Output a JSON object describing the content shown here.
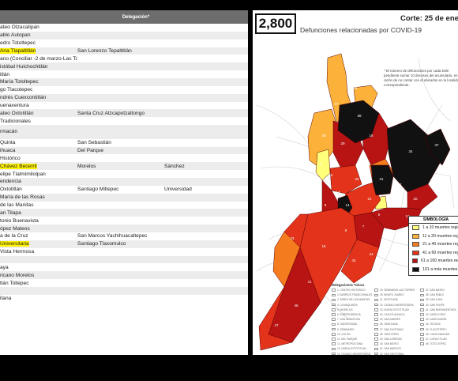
{
  "table": {
    "header": "Delegación*",
    "rows": [
      {
        "c1": "ateo Otzacatipan",
        "c2": "",
        "c3": ""
      },
      {
        "c1": "ablo Autopan",
        "c2": "",
        "c3": ""
      },
      {
        "c1": "edro Totoltepec",
        "c2": "",
        "c3": ""
      },
      {
        "c1": "Ana Tlapaltitlán",
        "c2": "San Lorenzo Tepaltitlán",
        "c3": "",
        "hl": true
      },
      {
        "c1": "ano (Conciliar -2 de marzo-Las Torres)",
        "c2": "",
        "c3": ""
      },
      {
        "c1": "istóbal Huichochitlán",
        "c2": "",
        "c3": ""
      },
      {
        "c1": "itlán",
        "c2": "",
        "c3": ""
      },
      {
        "c1": "María Totoltepec",
        "c2": "",
        "c3": ""
      },
      {
        "c1": "go Tlacotepec",
        "c2": "",
        "c3": ""
      },
      {
        "c1": "ndrés Cuexcontitlán",
        "c2": "",
        "c3": ""
      },
      {
        "c1": "uenaventura",
        "c2": "",
        "c3": ""
      },
      {
        "c1": "ateo Oxtotitlán",
        "c2": "Santa Cruz Atzcapotzaltongo",
        "c3": ""
      },
      {
        "c1": " Tradicionales",
        "c2": "",
        "c3": ""
      },
      {
        "c1": "rmacán",
        "c2": "",
        "c3": "",
        "tall": true
      },
      {
        "c1": "Quinta",
        "c2": "San Sebastián",
        "c3": ""
      },
      {
        "c1": "ihuaca",
        "c2": "Del Parque",
        "c3": ""
      },
      {
        "c1": " Histórico",
        "c2": "",
        "c3": ""
      },
      {
        "c1": "Chávez Becerril",
        "c2": "Morelos",
        "c3": "Sánchez",
        "hl": true
      },
      {
        "c1": "elipe Tlalmimilolpan",
        "c2": "",
        "c3": ""
      },
      {
        "c1": "endencia",
        "c2": "",
        "c3": ""
      },
      {
        "c1": " Oxtotitlán",
        "c2": "Santiago Miltepec",
        "c3": "Universidad"
      },
      {
        "c1": "María de las Rosas",
        "c2": "",
        "c3": ""
      },
      {
        "c1": " de las Manitas",
        "c2": "",
        "c3": ""
      },
      {
        "c1": "an Tilapa",
        "c2": "",
        "c3": ""
      },
      {
        "c1": "tonio Buenavista",
        "c2": "",
        "c3": ""
      },
      {
        "c1": "ópez Mateos",
        "c2": "",
        "c3": ""
      },
      {
        "c1": "a de la Cruz",
        "c2": "San Marcos Yachihuacaltepec",
        "c3": ""
      },
      {
        "c1": " Universitaria",
        "c2": "Santiago Tlaxomulco",
        "c3": "",
        "hl": true
      },
      {
        "c1": "Vista Hermosa",
        "c2": "",
        "c3": ""
      },
      {
        "c1": "",
        "c2": "",
        "c3": ""
      },
      {
        "c1": "aya",
        "c2": "",
        "c3": ""
      },
      {
        "c1": "ricano Morelos",
        "c2": "",
        "c3": ""
      },
      {
        "c1": "tlán Tollepec",
        "c2": "",
        "c3": ""
      },
      {
        "c1": "",
        "c2": "",
        "c3": ""
      },
      {
        "c1": "itana",
        "c2": "",
        "c3": ""
      }
    ]
  },
  "summary": {
    "count": "2,800",
    "subtitle": "Defunciones relacionadas por COVID-19",
    "cut_date": "Corte: 25 de ene",
    "footnote": "* El número de defunciones por cada Dele pendiente sumar 10 decesos del acumulado, en razón de no contar con di ubicarlos en la localidad correspondiente."
  },
  "legend": {
    "title": "SIMBOLOGÍA",
    "items": [
      {
        "label": "1 a 10 muertes regis",
        "color": "#ffff7a"
      },
      {
        "label": "11 a 20 muertes regis",
        "color": "#fcb23a"
      },
      {
        "label": "21 a 40 muertes regis",
        "color": "#f47b1e"
      },
      {
        "label": "41 a 60 muertes regis",
        "color": "#e3341b"
      },
      {
        "label": "61 a 100 muertes regis",
        "color": "#b81414"
      },
      {
        "label": "101 a más muertes re",
        "color": "#111111"
      }
    ]
  },
  "municipalities": {
    "title": "Delegaciones Toluca",
    "col1": [
      "1. CENTRO HISTÓRICO",
      "2. BARRIOS TRADICIONALES",
      "3. ÁRBOL DE LAS MANITAS",
      "4. LA MAQUINITA",
      "5. MORELOS",
      "6. INDEPENDENCIA",
      "7. SAN SEBASTIÁN",
      "8. UNIVERSIDAD",
      "9. SEMINARIO",
      "10. COLÓN",
      "11. DEL PARQUE",
      "12. METROPOLITANA",
      "13. NUEVA OXTOTITLÁN",
      "14. CIUDAD UNIVERSITARIA",
      "15. SANTA MARÍA",
      "16. ADOLFO LÓPEZ MATEOS",
      "17. SAN LORENZO",
      "18. SAN ANTONIO"
    ],
    "col2": [
      "19. SEMINARIO LAS TORRES",
      "20. BENITO JUÁREZ",
      "21. MOTOLINÍA",
      "22. CIUDAD UNIVERSITARIA",
      "23. NUEVA OXTOTITLÁN",
      "24. CALIXTLAHUACA",
      "25. SAN ANDRÉS",
      "26. SANTA ANA",
      "27. SAN CAYETANO",
      "28. TAPILTEPEC",
      "29. SAN LORENZO",
      "30. SAN MATEO",
      "31. SAN MARCOS",
      "32. SAN CRISTÓBAL",
      "33. SAN MARTÍN",
      "34. SAN PEDRO",
      "35. SAN PABLO",
      "36. SANTIAGO"
    ],
    "col3": [
      "37. SAN MATEO",
      "38. SAN PABLO",
      "39. SAN JUAN",
      "40. SAN FELIPE",
      "41. SAN BUENAVENTURA",
      "42. SANTA CRUZ",
      "43. SANTA MARÍA",
      "44. TECAXIC",
      "45. TLACOTEPEC",
      "46. CACALOMACÁN",
      "47. CAPULTITLÁN",
      "48. TOTOLTEPEC"
    ]
  },
  "map_labels": [
    "35",
    "36",
    "34",
    "37",
    "31",
    "32",
    "33",
    "25",
    "27",
    "28",
    "29",
    "16",
    "26",
    "10",
    "9",
    "21",
    "14",
    "5",
    "7",
    "8",
    "15",
    "12",
    "41",
    "46",
    "47",
    "44",
    "42",
    "3",
    "4",
    "23",
    "20"
  ]
}
